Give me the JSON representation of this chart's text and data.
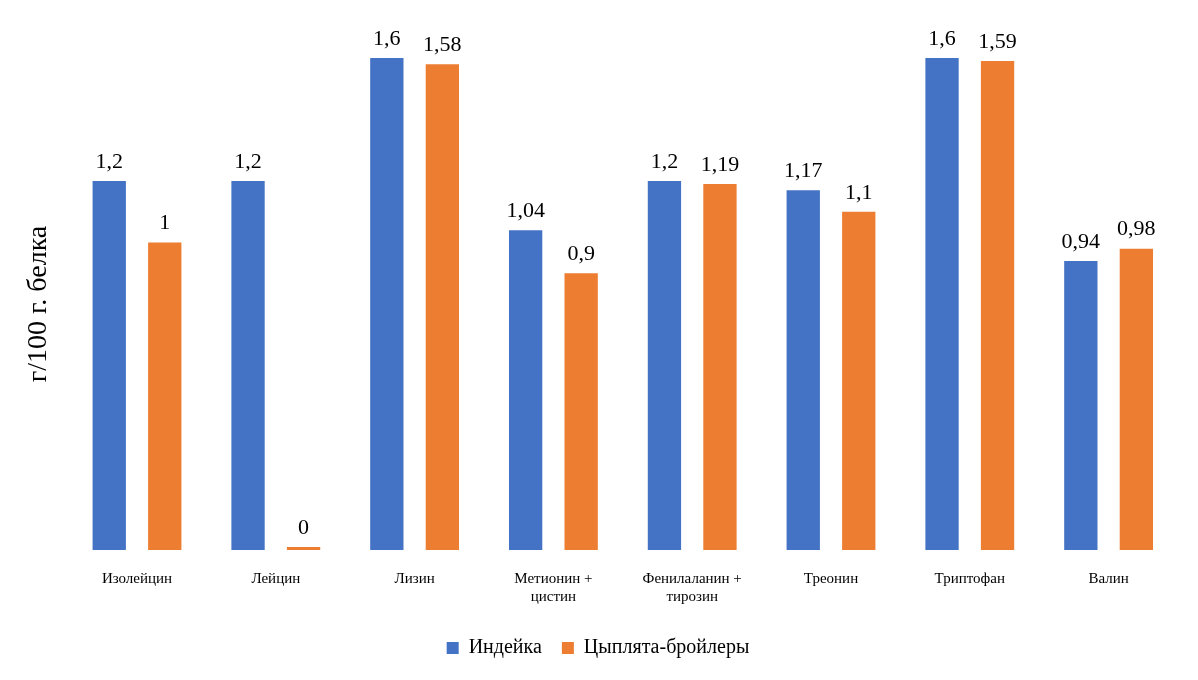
{
  "chart_data": {
    "type": "bar",
    "ylabel": "г/100 г. белка",
    "categories": [
      "Изолейцин",
      "Лейцин",
      "Лизин",
      "Метионин + цистин",
      "Фенилаланин + тирозин",
      "Треонин",
      "Триптофан",
      "Валин"
    ],
    "series": [
      {
        "name": "Индейка",
        "color": "#4472c4",
        "values": [
          1.2,
          1.2,
          1.6,
          1.04,
          1.2,
          1.17,
          1.6,
          0.94
        ],
        "value_labels": [
          "1,2",
          "1,2",
          "1,6",
          "1,04",
          "1,2",
          "1,17",
          "1,6",
          "0,94"
        ]
      },
      {
        "name": "Цыплята-бройлеры",
        "color": "#ed7d31",
        "values": [
          1,
          0,
          1.58,
          0.9,
          1.19,
          1.1,
          1.59,
          0.98
        ],
        "value_labels": [
          "1",
          "0",
          "1,58",
          "0,9",
          "1,19",
          "1,1",
          "1,59",
          "0,98"
        ]
      }
    ],
    "legend": "bottom",
    "grid": false
  }
}
